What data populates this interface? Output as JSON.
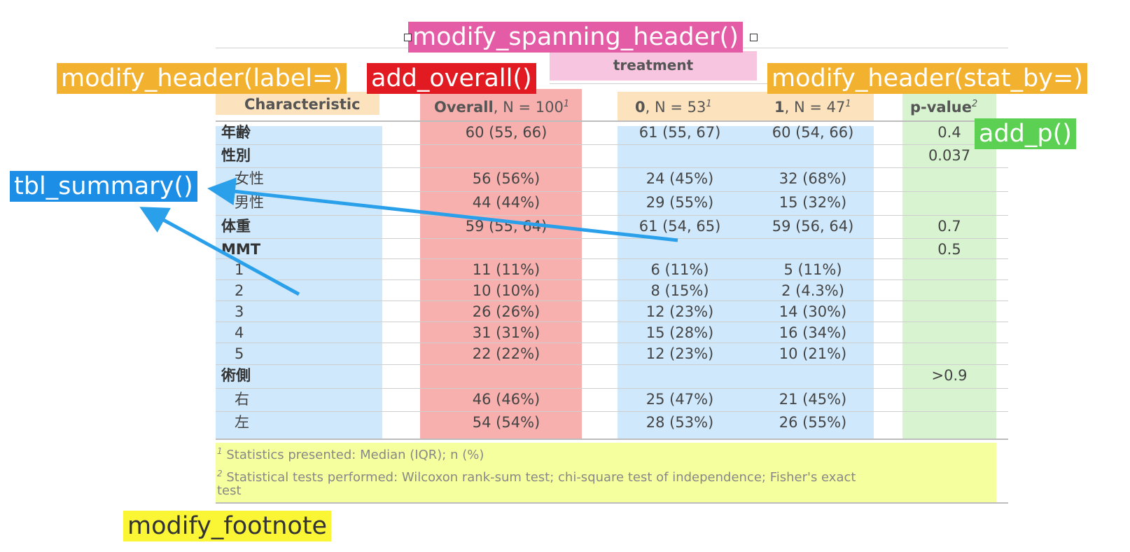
{
  "annotations": {
    "spanning_header": "modify_spanning_header()",
    "header_label": "modify_header(label=)",
    "overall": "add_overall()",
    "header_stat_by": "modify_header(stat_by=)",
    "add_p": "add_p()",
    "tbl_summary": "tbl_summary()",
    "footnote": "modify_footnote"
  },
  "colors": {
    "pink": "#e45ba6",
    "orange": "#f2b22f",
    "red": "#e21b22",
    "green": "#5cd052",
    "blue": "#1d8ee6",
    "yellow": "#faf636"
  },
  "table": {
    "spanning_header": "treatment",
    "headers": {
      "characteristic": "Characteristic",
      "overall_bold": "Overall",
      "overall_rest": ", N = 100",
      "overall_sup": "1",
      "g0_bold": "0",
      "g0_rest": ", N = 53",
      "g0_sup": "1",
      "g1_bold": "1",
      "g1_rest": ", N = 47",
      "g1_sup": "1",
      "p_label": "p-value",
      "p_sup": "2"
    },
    "rows": [
      {
        "label": "年齢",
        "overall": "60 (55, 66)",
        "g0": "61 (55, 67)",
        "g1": "60 (54, 66)",
        "p": "0.4"
      },
      {
        "label": "性別",
        "overall": "",
        "g0": "",
        "g1": "",
        "p": "0.037"
      },
      {
        "label": "女性",
        "overall": "56 (56%)",
        "g0": "24 (45%)",
        "g1": "32 (68%)",
        "p": ""
      },
      {
        "label": "男性",
        "overall": "44 (44%)",
        "g0": "29 (55%)",
        "g1": "15 (32%)",
        "p": ""
      },
      {
        "label": "体重",
        "overall": "59 (55, 64)",
        "g0": "61 (54, 65)",
        "g1": "59 (56, 64)",
        "p": "0.7"
      },
      {
        "label": "MMT",
        "overall": "",
        "g0": "",
        "g1": "",
        "p": "0.5"
      },
      {
        "label": "1",
        "overall": "11 (11%)",
        "g0": "6 (11%)",
        "g1": "5 (11%)",
        "p": ""
      },
      {
        "label": "2",
        "overall": "10 (10%)",
        "g0": "8 (15%)",
        "g1": "2 (4.3%)",
        "p": ""
      },
      {
        "label": "3",
        "overall": "26 (26%)",
        "g0": "12 (23%)",
        "g1": "14 (30%)",
        "p": ""
      },
      {
        "label": "4",
        "overall": "31 (31%)",
        "g0": "15 (28%)",
        "g1": "16 (34%)",
        "p": ""
      },
      {
        "label": "5",
        "overall": "22 (22%)",
        "g0": "12 (23%)",
        "g1": "10 (21%)",
        "p": ""
      },
      {
        "label": "術側",
        "overall": "",
        "g0": "",
        "g1": "",
        "p": ">0.9"
      },
      {
        "label": "右",
        "overall": "46 (46%)",
        "g0": "25 (47%)",
        "g1": "21 (45%)",
        "p": ""
      },
      {
        "label": "左",
        "overall": "54 (54%)",
        "g0": "28 (53%)",
        "g1": "26 (55%)",
        "p": ""
      }
    ],
    "footnotes": [
      {
        "sup": "1",
        "text": "Statistics presented: Median (IQR); n (%)"
      },
      {
        "sup": "2",
        "text": "Statistical tests performed: Wilcoxon rank-sum test; chi-square test of independence; Fisher's exact"
      },
      {
        "sup": "",
        "text": "test"
      }
    ]
  }
}
